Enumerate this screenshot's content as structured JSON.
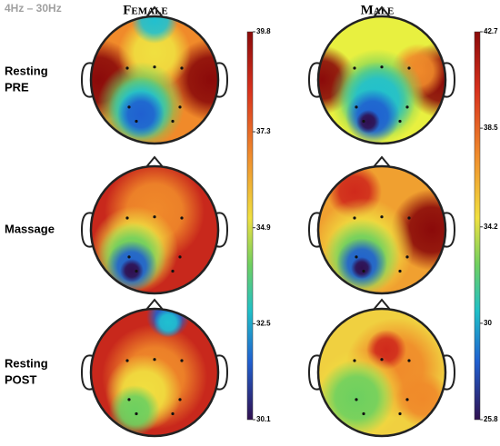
{
  "band": "4Hz – 30Hz",
  "columns": [
    "Female",
    "Male"
  ],
  "rows": [
    [
      "Resting",
      "PRE"
    ],
    [
      "Massage"
    ],
    [
      "Resting",
      "POST"
    ]
  ],
  "colorbars": [
    {
      "lim": [
        30.1,
        39.8
      ],
      "ticks": [
        39.8,
        37.3,
        34.9,
        32.5,
        30.1
      ]
    },
    {
      "lim": [
        25.8,
        42.7
      ],
      "ticks": [
        42.7,
        38.5,
        34.2,
        30.0,
        25.8
      ]
    }
  ]
}
